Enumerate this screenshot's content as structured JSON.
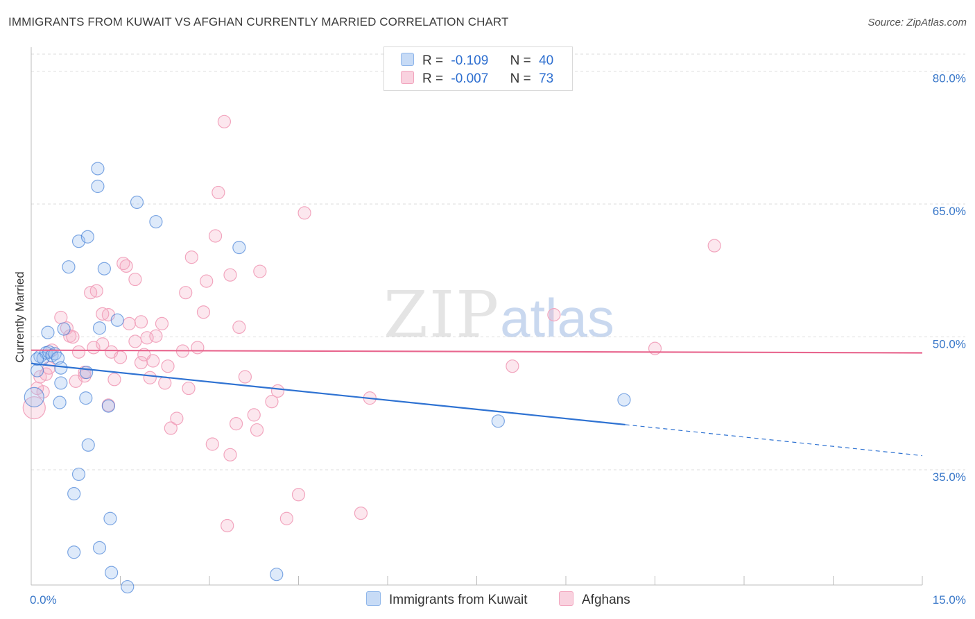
{
  "title": "IMMIGRANTS FROM KUWAIT VS AFGHAN CURRENTLY MARRIED CORRELATION CHART",
  "source": "Source: ZipAtlas.com",
  "watermark": {
    "zip": "ZIP",
    "atlas": "atlas"
  },
  "legend": {
    "rows": [
      {
        "r_label": "R =",
        "r_value": "-0.109",
        "n_label": "N =",
        "n_value": "40",
        "color": "#8fb6ea"
      },
      {
        "r_label": "R =",
        "r_value": "-0.007",
        "n_label": "N =",
        "n_value": "73",
        "color": "#f2a5be"
      }
    ]
  },
  "bottom_legend": {
    "kuwait": "Immigrants from Kuwait",
    "afghans": "Afghans"
  },
  "chart_data": {
    "type": "scatter",
    "ylabel": "Currently Married",
    "xlim": [
      0,
      15
    ],
    "ylim": [
      22,
      82
    ],
    "x_tick_labels": [
      "0.0%",
      "15.0%"
    ],
    "y_ticks": [
      35,
      50,
      65,
      80
    ],
    "y_tick_labels": [
      "35.0%",
      "50.0%",
      "65.0%",
      "80.0%"
    ],
    "grid": true,
    "colors": {
      "kuwait": "#8fb6ea",
      "afghans": "#f2a5be",
      "kuwait_line": "#2e72d2",
      "afghans_line": "#e8668e"
    },
    "series": [
      {
        "name": "Immigrants from Kuwait",
        "trend": {
          "x0": 0.0,
          "y0": 47.0,
          "x1": 10.0,
          "y1": 40.1,
          "dash_to_x": 15.0,
          "dash_to_y": 36.6
        },
        "points": [
          [
            0.05,
            43.2
          ],
          [
            0.1,
            46.2
          ],
          [
            0.15,
            47.8
          ],
          [
            0.2,
            47.6
          ],
          [
            0.25,
            48.2
          ],
          [
            0.3,
            48.3
          ],
          [
            0.35,
            47.9
          ],
          [
            0.4,
            48.1
          ],
          [
            0.45,
            47.6
          ],
          [
            0.28,
            50.5
          ],
          [
            0.55,
            50.9
          ],
          [
            0.5,
            46.5
          ],
          [
            0.5,
            44.8
          ],
          [
            0.48,
            42.6
          ],
          [
            0.93,
            46.0
          ],
          [
            0.92,
            43.1
          ],
          [
            0.96,
            37.8
          ],
          [
            0.8,
            34.5
          ],
          [
            0.72,
            32.3
          ],
          [
            0.72,
            25.7
          ],
          [
            1.15,
            26.2
          ],
          [
            1.35,
            23.4
          ],
          [
            1.62,
            21.8
          ],
          [
            1.33,
            29.5
          ],
          [
            1.3,
            42.2
          ],
          [
            1.15,
            51.0
          ],
          [
            1.45,
            51.9
          ],
          [
            1.23,
            57.7
          ],
          [
            0.63,
            57.9
          ],
          [
            0.8,
            60.8
          ],
          [
            0.95,
            61.3
          ],
          [
            1.12,
            67.0
          ],
          [
            1.12,
            69.0
          ],
          [
            1.78,
            65.2
          ],
          [
            2.1,
            63.0
          ],
          [
            3.5,
            60.1
          ],
          [
            4.13,
            23.2
          ],
          [
            7.86,
            40.5
          ],
          [
            9.98,
            42.9
          ],
          [
            0.1,
            47.5
          ]
        ]
      },
      {
        "name": "Afghans",
        "trend": {
          "x0": 0.0,
          "y0": 48.5,
          "x1": 15.0,
          "y1": 48.2
        },
        "points": [
          [
            0.05,
            42.0
          ],
          [
            0.1,
            44.2
          ],
          [
            0.15,
            45.5
          ],
          [
            0.25,
            45.8
          ],
          [
            0.3,
            46.5
          ],
          [
            0.35,
            48.5
          ],
          [
            0.5,
            52.2
          ],
          [
            0.6,
            51.0
          ],
          [
            0.65,
            50.1
          ],
          [
            0.7,
            50.0
          ],
          [
            0.8,
            48.3
          ],
          [
            0.9,
            46.0
          ],
          [
            0.75,
            45.0
          ],
          [
            0.9,
            45.6
          ],
          [
            1.05,
            48.8
          ],
          [
            1.0,
            55.0
          ],
          [
            1.1,
            55.2
          ],
          [
            1.2,
            52.6
          ],
          [
            1.3,
            52.5
          ],
          [
            1.35,
            48.3
          ],
          [
            1.4,
            45.2
          ],
          [
            1.3,
            42.3
          ],
          [
            1.5,
            47.7
          ],
          [
            1.55,
            58.3
          ],
          [
            1.6,
            58.0
          ],
          [
            1.65,
            51.5
          ],
          [
            1.75,
            56.5
          ],
          [
            1.75,
            49.5
          ],
          [
            1.85,
            51.7
          ],
          [
            1.9,
            48.0
          ],
          [
            1.95,
            49.9
          ],
          [
            2.0,
            45.4
          ],
          [
            2.05,
            47.3
          ],
          [
            2.1,
            50.1
          ],
          [
            2.2,
            51.5
          ],
          [
            2.25,
            44.8
          ],
          [
            2.3,
            46.7
          ],
          [
            2.35,
            39.7
          ],
          [
            2.45,
            40.8
          ],
          [
            2.55,
            48.4
          ],
          [
            2.6,
            55.0
          ],
          [
            2.65,
            44.2
          ],
          [
            2.7,
            59.0
          ],
          [
            2.8,
            48.8
          ],
          [
            2.9,
            52.8
          ],
          [
            2.95,
            56.3
          ],
          [
            3.05,
            37.9
          ],
          [
            3.1,
            61.4
          ],
          [
            3.15,
            66.3
          ],
          [
            3.3,
            28.7
          ],
          [
            3.35,
            36.7
          ],
          [
            3.25,
            74.3
          ],
          [
            3.35,
            57.0
          ],
          [
            3.45,
            40.2
          ],
          [
            3.5,
            51.1
          ],
          [
            3.6,
            45.5
          ],
          [
            3.75,
            41.2
          ],
          [
            3.8,
            39.5
          ],
          [
            3.85,
            57.4
          ],
          [
            4.05,
            42.7
          ],
          [
            4.15,
            43.9
          ],
          [
            4.3,
            29.5
          ],
          [
            4.5,
            32.2
          ],
          [
            4.6,
            64.0
          ],
          [
            5.55,
            30.1
          ],
          [
            5.7,
            43.1
          ],
          [
            8.1,
            46.7
          ],
          [
            8.8,
            52.5
          ],
          [
            10.5,
            48.7
          ],
          [
            11.5,
            60.3
          ],
          [
            0.2,
            43.8
          ],
          [
            1.85,
            47.1
          ],
          [
            1.2,
            49.2
          ]
        ]
      }
    ]
  }
}
